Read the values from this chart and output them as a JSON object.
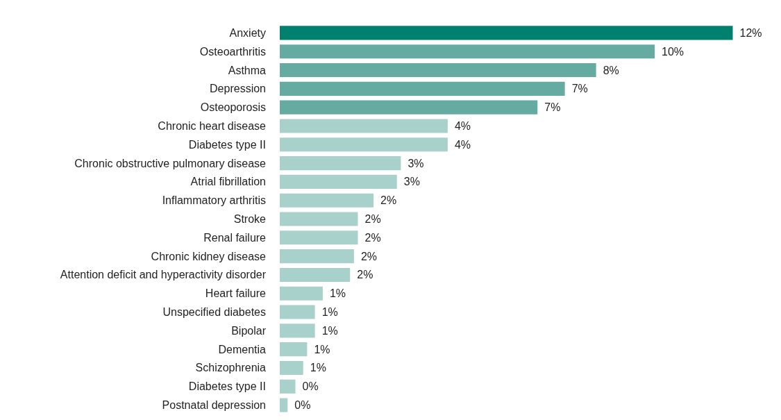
{
  "chart_data": {
    "type": "bar",
    "orientation": "horizontal",
    "categories": [
      "Anxiety",
      "Osteoarthritis",
      "Asthma",
      "Depression",
      "Osteoporosis",
      "Chronic heart disease",
      "Diabetes type II",
      "Chronic obstructive pulmonary disease",
      "Atrial fibrillation",
      "Inflammatory arthritis",
      "Stroke",
      "Renal failure",
      "Chronic kidney disease",
      "Attention deficit and hyperactivity disorder",
      "Heart failure",
      "Unspecified diabetes",
      "Bipolar",
      "Dementia",
      "Schizophrenia",
      "Diabetes type II",
      "Postnatal depression"
    ],
    "values": [
      11.6,
      9.6,
      8.1,
      7.3,
      6.6,
      4.3,
      4.3,
      3.1,
      3.0,
      2.4,
      2.0,
      2.0,
      1.9,
      1.8,
      1.1,
      0.9,
      0.9,
      0.7,
      0.6,
      0.4,
      0.2
    ],
    "value_labels": [
      "12%",
      "10%",
      "8%",
      "7%",
      "7%",
      "4%",
      "4%",
      "3%",
      "3%",
      "2%",
      "2%",
      "2%",
      "2%",
      "2%",
      "1%",
      "1%",
      "1%",
      "1%",
      "1%",
      "0%",
      "0%"
    ],
    "colors": [
      "#00806e",
      "#66aba1",
      "#66aba1",
      "#66aba1",
      "#66aba1",
      "#a9d1cb",
      "#a9d1cb",
      "#a9d1cb",
      "#a9d1cb",
      "#a9d1cb",
      "#a9d1cb",
      "#a9d1cb",
      "#a9d1cb",
      "#a9d1cb",
      "#a9d1cb",
      "#a9d1cb",
      "#a9d1cb",
      "#a9d1cb",
      "#a9d1cb",
      "#a9d1cb",
      "#a9d1cb"
    ],
    "legend": false
  }
}
